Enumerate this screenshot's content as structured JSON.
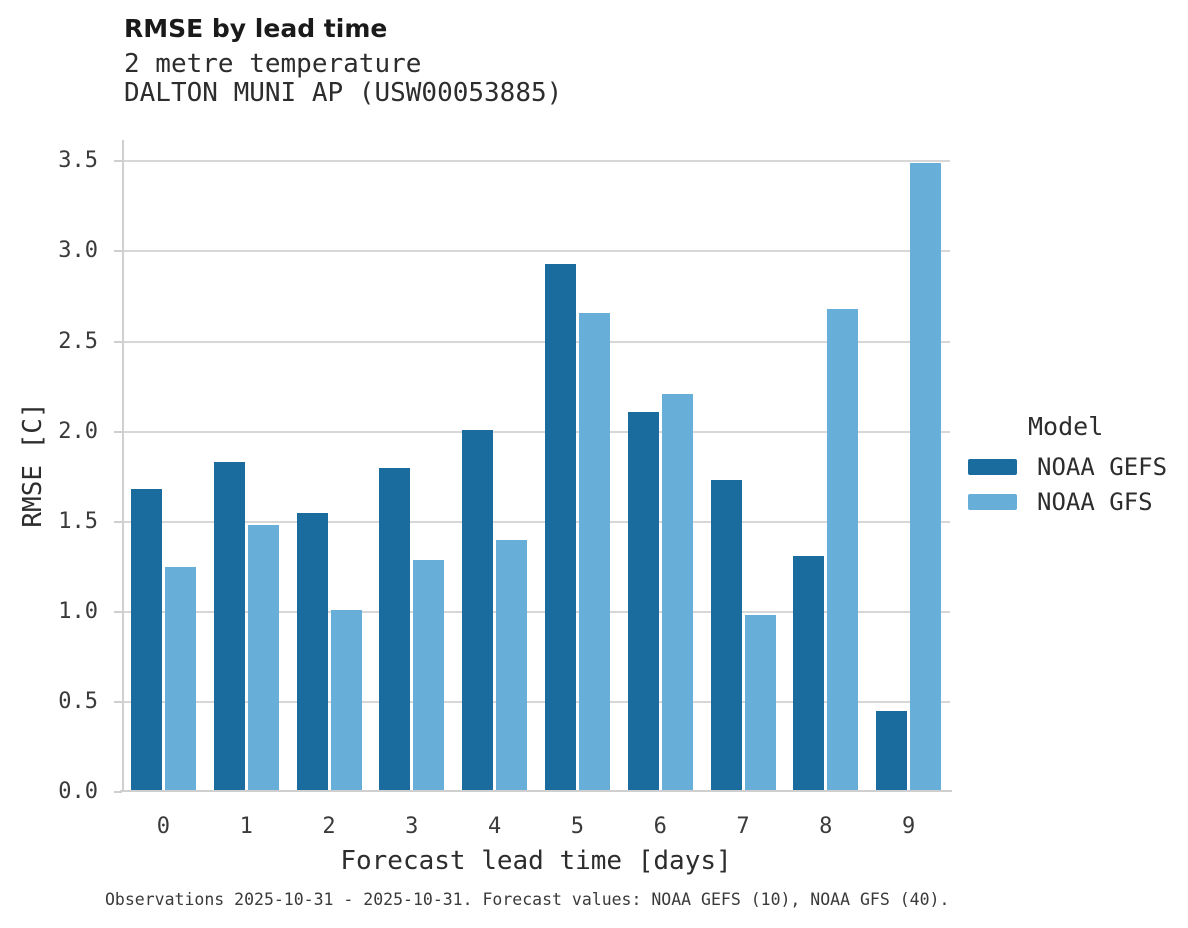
{
  "header": {
    "title": "RMSE by lead time",
    "subtitle_line1": "2 metre temperature",
    "subtitle_line2": "DALTON MUNI AP (USW00053885)"
  },
  "chart_data": {
    "type": "bar",
    "title": "RMSE by lead time",
    "subtitle": [
      "2 metre temperature",
      "DALTON MUNI AP (USW00053885)"
    ],
    "categories": [
      "0",
      "1",
      "2",
      "3",
      "4",
      "5",
      "6",
      "7",
      "8",
      "9"
    ],
    "series": [
      {
        "name": "NOAA GEFS",
        "color": "#1a6c9e",
        "values": [
          1.68,
          1.83,
          1.55,
          1.8,
          2.01,
          2.93,
          2.11,
          1.73,
          1.31,
          0.45
        ]
      },
      {
        "name": "NOAA GFS",
        "color": "#67aed8",
        "values": [
          1.25,
          1.48,
          1.01,
          1.29,
          1.4,
          2.66,
          2.21,
          0.98,
          2.68,
          3.49
        ]
      }
    ],
    "xlabel": "Forecast lead time [days]",
    "ylabel": "RMSE [C]",
    "ylim": [
      0,
      3.5
    ],
    "yticks": [
      "0.0",
      "0.5",
      "1.0",
      "1.5",
      "2.0",
      "2.5",
      "3.0",
      "3.5"
    ],
    "grid": "horizontal",
    "legend_position": "right"
  },
  "legend": {
    "title": "Model"
  },
  "footnote": "Observations 2025-10-31 - 2025-10-31. Forecast values: NOAA GEFS (10), NOAA GFS (40)."
}
